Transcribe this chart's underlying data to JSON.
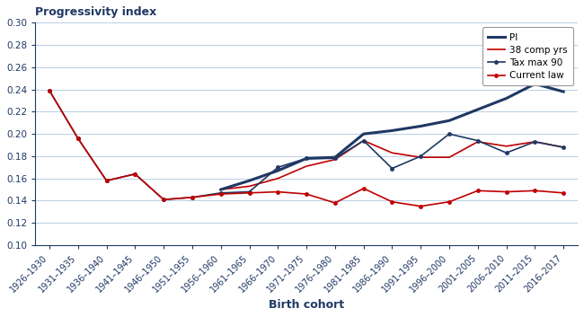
{
  "categories": [
    "1926–1930",
    "1931–1935",
    "1936–1940",
    "1941–1945",
    "1946–1950",
    "1951–1955",
    "1956–1960",
    "1961–1965",
    "1966–1970",
    "1971–1975",
    "1976–1980",
    "1981–1985",
    "1986–1990",
    "1991–1995",
    "1996–2000",
    "2001–2005",
    "2006–2010",
    "2011–2015",
    "2016–2017"
  ],
  "PI": [
    null,
    null,
    null,
    null,
    null,
    null,
    0.15,
    0.158,
    0.167,
    0.178,
    0.179,
    0.2,
    0.203,
    0.207,
    0.212,
    0.222,
    0.232,
    0.245,
    0.238
  ],
  "comp38": [
    null,
    null,
    null,
    null,
    null,
    null,
    0.15,
    0.153,
    0.16,
    0.171,
    0.177,
    0.194,
    0.183,
    0.179,
    0.179,
    0.193,
    0.189,
    0.193,
    0.188
  ],
  "taxmax90": [
    0.239,
    0.196,
    0.158,
    0.164,
    0.141,
    0.143,
    0.147,
    0.148,
    0.17,
    0.178,
    0.178,
    0.194,
    0.169,
    0.18,
    0.2,
    0.194,
    0.183,
    0.193,
    0.188
  ],
  "currentlaw": [
    0.239,
    0.196,
    0.158,
    0.164,
    0.141,
    0.143,
    0.146,
    0.147,
    0.148,
    0.146,
    0.138,
    0.151,
    0.139,
    0.135,
    0.139,
    0.149,
    0.148,
    0.149,
    0.147
  ],
  "title": "Progressivity index",
  "xlabel": "Birth cohort",
  "ylim": [
    0.1,
    0.3
  ],
  "yticks": [
    0.1,
    0.12,
    0.14,
    0.16,
    0.18,
    0.2,
    0.22,
    0.24,
    0.26,
    0.28,
    0.3
  ],
  "color_navy": "#1f3864",
  "color_red": "#c00000",
  "legend_labels": [
    "PI",
    "38 comp yrs",
    "Tax max 90",
    "Current law"
  ]
}
